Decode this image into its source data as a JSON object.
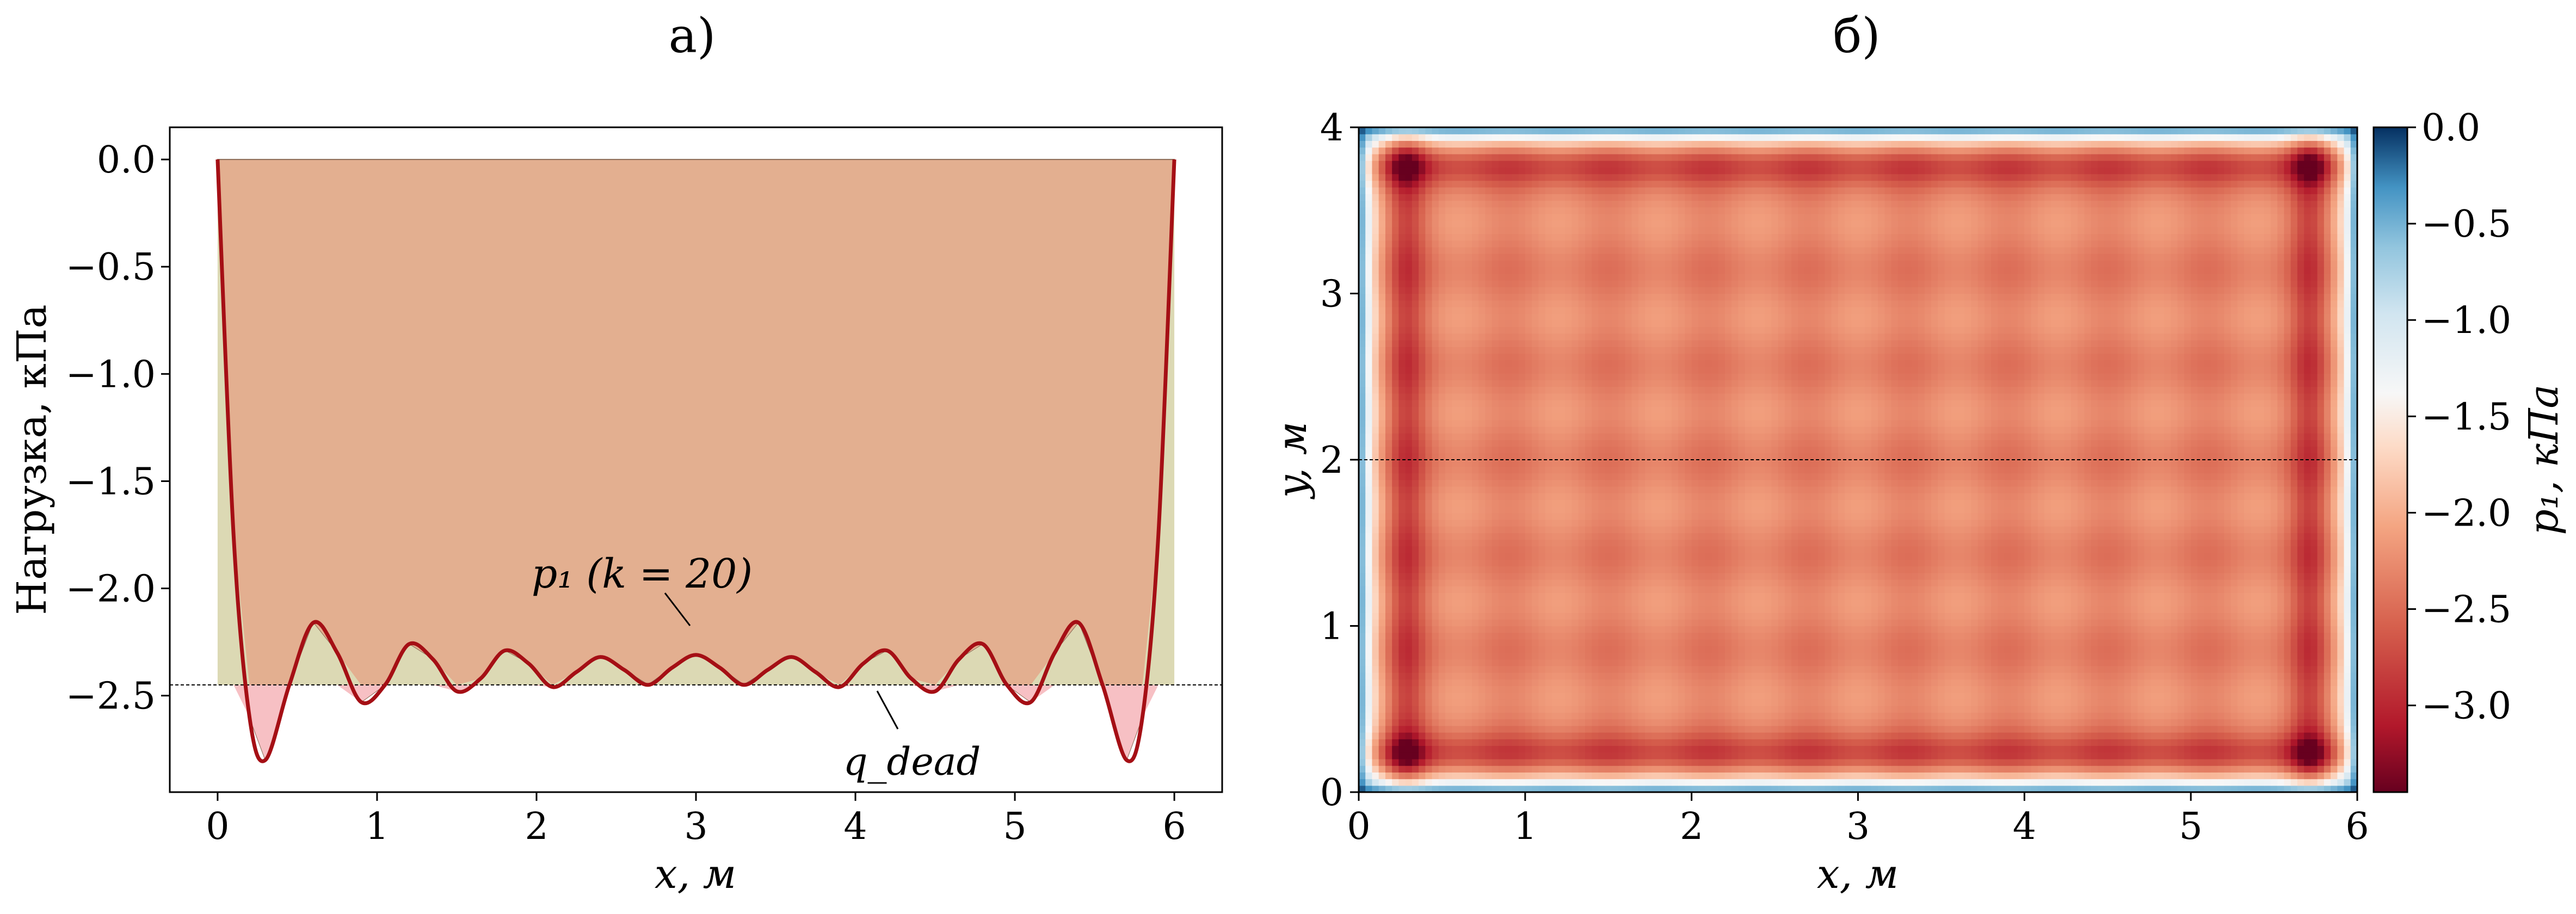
{
  "panel_a": {
    "label": "а)",
    "xlabel": "x, м",
    "ylabel": "Нагрузка, кПа",
    "x_ticks": [
      "0",
      "1",
      "2",
      "3",
      "4",
      "5",
      "6"
    ],
    "y_ticks": [
      "0.0",
      "−0.5",
      "−1.0",
      "−1.5",
      "−2.0",
      "−2.5"
    ],
    "annotation_p1": "p₁ (k = 20)",
    "annotation_qdead": "q_dead"
  },
  "panel_b": {
    "label": "б)",
    "xlabel": "x, м",
    "ylabel": "y, м",
    "x_ticks": [
      "0",
      "1",
      "2",
      "3",
      "4",
      "5",
      "6"
    ],
    "y_ticks": [
      "0",
      "1",
      "2",
      "3",
      "4"
    ],
    "colorbar_label": "p₁, кПа",
    "colorbar_ticks": [
      "0.0",
      "−0.5",
      "−1.0",
      "−1.5",
      "−2.0",
      "−2.5",
      "−3.0"
    ]
  },
  "colors": {
    "curve": "#a50f15",
    "fill_pressure": "#e3af90",
    "fill_above": "#dcd9b4",
    "fill_below": "#f7c0c4",
    "dead_line": "#000000"
  },
  "chart_data": [
    {
      "type": "area",
      "title": "а)",
      "xlabel": "x, м",
      "ylabel": "Нагрузка, кПа",
      "xlim": [
        -0.3,
        6.3
      ],
      "ylim": [
        -2.95,
        0.15
      ],
      "series": [
        {
          "name": "p₁ (k = 20)",
          "x": [
            0,
            0.1,
            0.2,
            0.3,
            0.45,
            0.6,
            0.75,
            0.9,
            1.05,
            1.2,
            1.35,
            1.5,
            1.65,
            1.8,
            1.95,
            2.1,
            2.25,
            2.4,
            2.55,
            2.7,
            2.85,
            3.0,
            3.15,
            3.3,
            3.45,
            3.6,
            3.75,
            3.9,
            4.05,
            4.2,
            4.35,
            4.5,
            4.65,
            4.8,
            4.95,
            5.1,
            5.25,
            5.4,
            5.55,
            5.7,
            5.8,
            5.9,
            6.0
          ],
          "values": [
            0.0,
            -1.75,
            -2.6,
            -2.8,
            -2.45,
            -2.16,
            -2.3,
            -2.53,
            -2.45,
            -2.26,
            -2.33,
            -2.48,
            -2.42,
            -2.29,
            -2.35,
            -2.46,
            -2.39,
            -2.32,
            -2.38,
            -2.45,
            -2.37,
            -2.31,
            -2.37,
            -2.45,
            -2.38,
            -2.32,
            -2.39,
            -2.46,
            -2.35,
            -2.29,
            -2.42,
            -2.48,
            -2.33,
            -2.26,
            -2.45,
            -2.53,
            -2.3,
            -2.16,
            -2.45,
            -2.8,
            -2.6,
            -1.75,
            0.0
          ]
        },
        {
          "name": "q_dead",
          "x": [
            0,
            6
          ],
          "values": [
            -2.45,
            -2.45
          ]
        }
      ]
    },
    {
      "type": "heatmap",
      "title": "б)",
      "xlabel": "x, м",
      "ylabel": "y, м",
      "xlim": [
        0,
        6
      ],
      "ylim": [
        0,
        4
      ],
      "colorbar": {
        "label": "p₁, кПа",
        "range": [
          -3.45,
          0.0
        ],
        "colormap": "RdBu"
      },
      "field": {
        "edge_value": 0.0,
        "mean_value": -2.3,
        "ripple_count_x": 10,
        "ripple_count_y": 7,
        "corner_min": -3.45
      },
      "reference_line_y": 2.0
    }
  ]
}
